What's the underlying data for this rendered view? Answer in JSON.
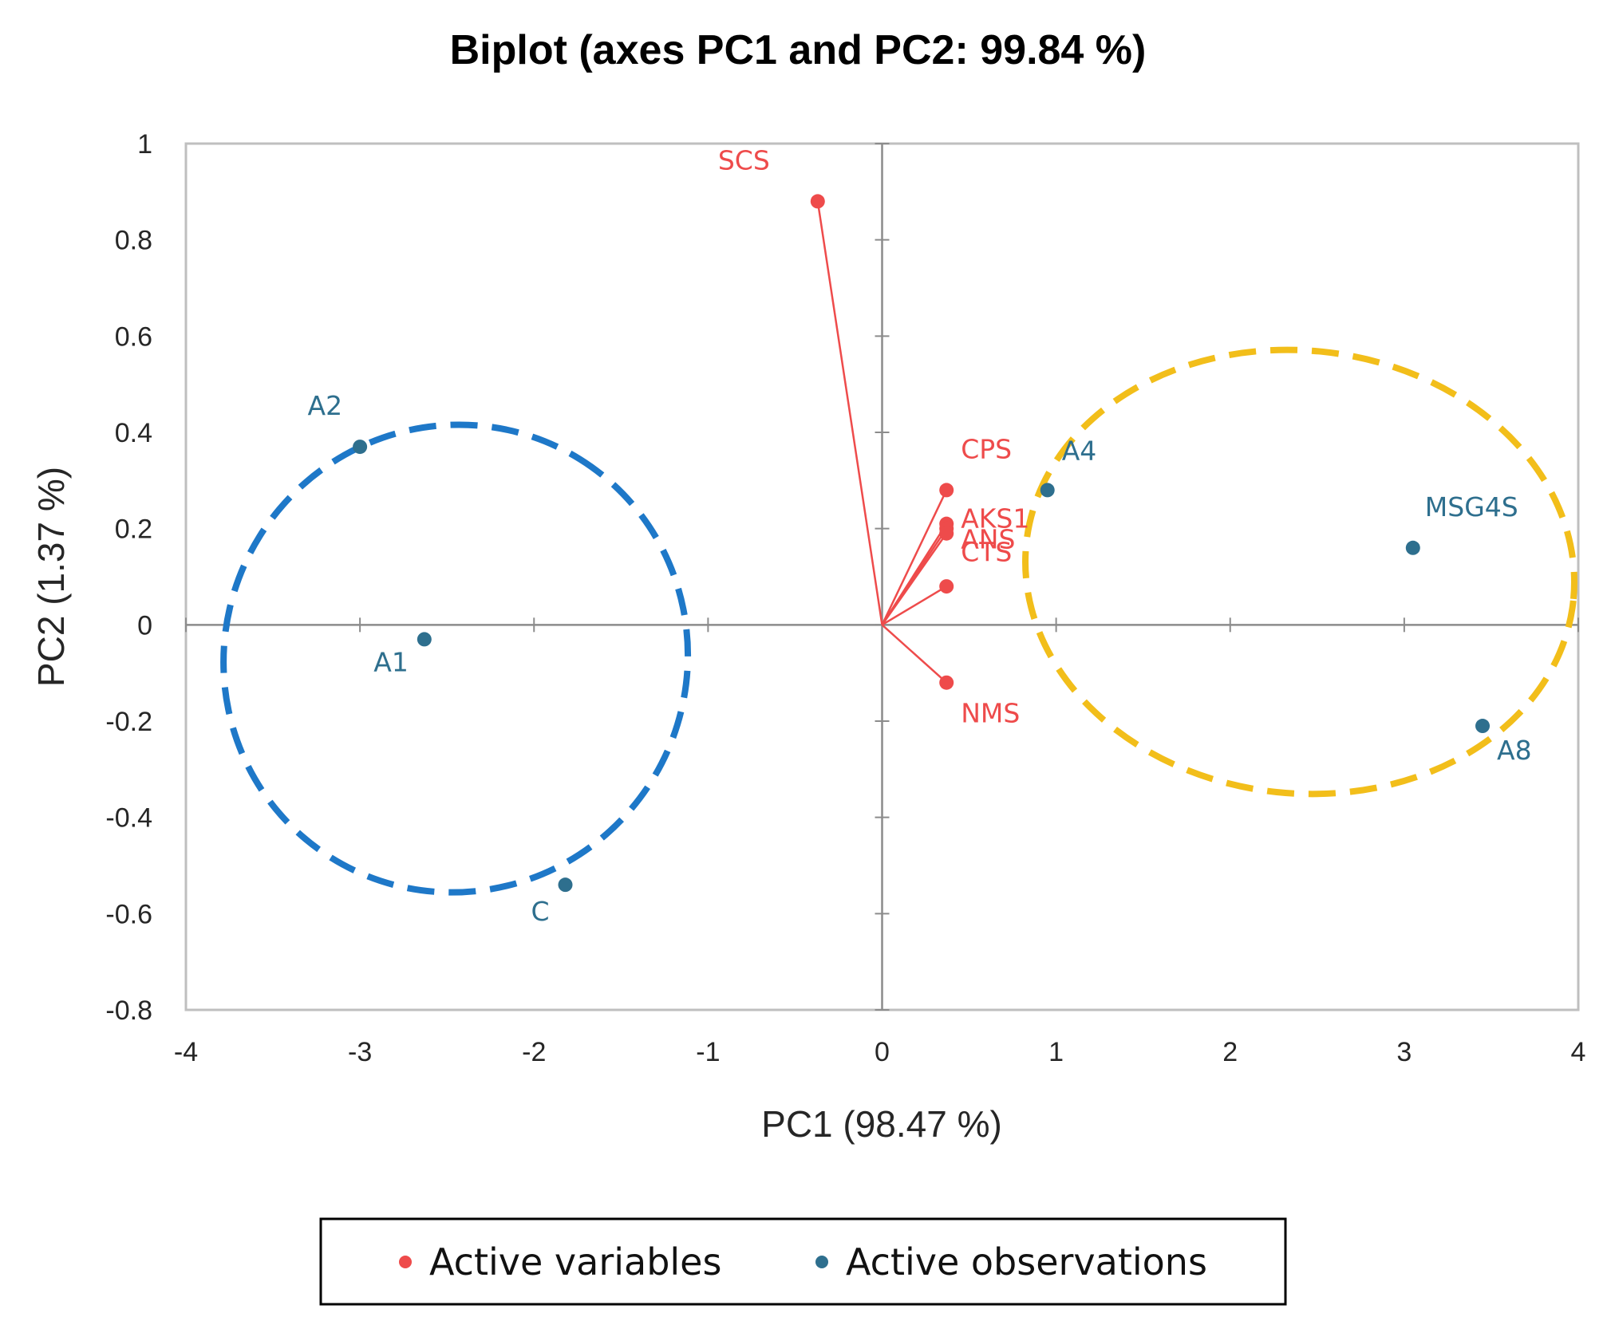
{
  "chart_data": {
    "type": "scatter",
    "subtype": "biplot",
    "title": "Biplot (axes PC1 and PC2: 99.84 %)",
    "xlabel": "PC1 (98.47 %)",
    "ylabel": "PC2 (1.37 %)",
    "xlim": [
      -4,
      4
    ],
    "ylim": [
      -0.8,
      1
    ],
    "x_ticks": [
      -4,
      -3,
      -2,
      -1,
      0,
      1,
      2,
      3,
      4
    ],
    "y_ticks": [
      -0.8,
      -0.6,
      -0.4,
      -0.2,
      0,
      0.2,
      0.4,
      0.6,
      0.8,
      1
    ],
    "grid": false,
    "legend_position": "bottom-center",
    "series": [
      {
        "name": "Active variables",
        "color": "#ee4b4b",
        "style": "vectors-from-origin",
        "points": [
          {
            "label": "SCS",
            "x": -0.37,
            "y": 0.88
          },
          {
            "label": "CPS",
            "x": 0.37,
            "y": 0.28
          },
          {
            "label": "AKS1",
            "x": 0.37,
            "y": 0.21
          },
          {
            "label": "ANS",
            "x": 0.37,
            "y": 0.2
          },
          {
            "label": "CTS",
            "x": 0.37,
            "y": 0.19
          },
          {
            "label": "",
            "x": 0.37,
            "y": 0.08
          },
          {
            "label": "NMS",
            "x": 0.37,
            "y": -0.12
          }
        ]
      },
      {
        "name": "Active observations",
        "color": "#2e6f8e",
        "style": "points",
        "points": [
          {
            "label": "A2",
            "x": -3.0,
            "y": 0.37
          },
          {
            "label": "A1",
            "x": -2.63,
            "y": -0.03
          },
          {
            "label": "C",
            "x": -1.82,
            "y": -0.54
          },
          {
            "label": "A4",
            "x": 0.95,
            "y": 0.28
          },
          {
            "label": "MSG4S",
            "x": 3.05,
            "y": 0.16
          },
          {
            "label": "A8",
            "x": 3.45,
            "y": -0.21
          }
        ]
      }
    ],
    "annotations": [
      {
        "type": "dashed-ellipse",
        "color": "#1e78c8",
        "cx": -2.45,
        "cy": -0.07,
        "rx": 1.35,
        "ry": 0.48,
        "rotation_deg": -58
      },
      {
        "type": "dashed-ellipse",
        "color": "#f2be1a",
        "cx": 2.4,
        "cy": 0.11,
        "rx": 1.58,
        "ry": 0.46,
        "rotation_deg": 6
      }
    ]
  }
}
